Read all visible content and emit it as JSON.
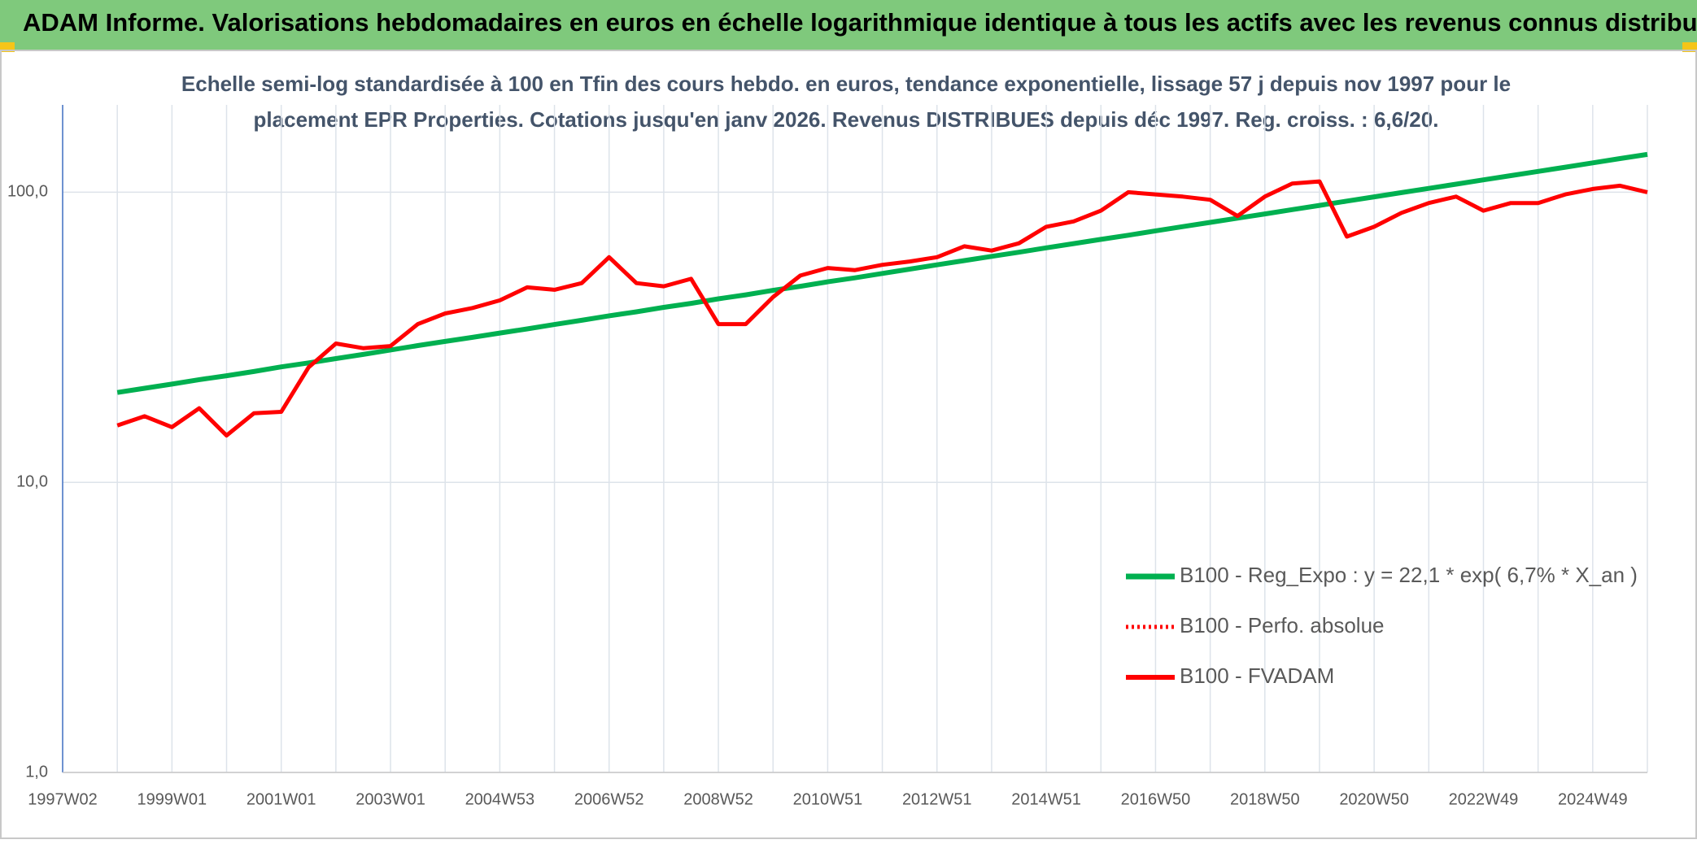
{
  "header": {
    "title": "ADAM Informe. Valorisations hebdomadaires en euros en échelle logarithmique identique à tous les actifs avec les revenus connus distribués"
  },
  "chart_data": {
    "type": "line",
    "subtitle": [
      "Echelle semi-log standardisée à 100 en Tfin des cours hebdo. en euros, tendance exponentielle, lissage 57 j depuis nov 1997 pour le",
      "placement EPR Properties. Cotations jusqu'en janv 2026. Revenus DISTRIBUES depuis déc 1997. Reg. croiss. : 6,6/20."
    ],
    "categories": [
      "1997W02",
      null,
      null,
      null,
      "1999W01",
      null,
      null,
      null,
      "2001W01",
      null,
      null,
      null,
      "2003W01",
      null,
      null,
      null,
      "2004W53",
      null,
      null,
      null,
      "2006W52",
      null,
      null,
      null,
      "2008W52",
      null,
      null,
      null,
      "2010W51",
      null,
      null,
      null,
      "2012W51",
      null,
      null,
      null,
      "2014W51",
      null,
      null,
      null,
      "2016W50",
      null,
      null,
      null,
      "2018W50",
      null,
      null,
      null,
      "2020W50",
      null,
      null,
      null,
      "2022W49",
      null,
      null,
      null,
      "2024W49",
      null,
      null
    ],
    "series": [
      {
        "name": "B100 - Reg_Expo : y = 22,1 * exp( 6,7% *  X_an )",
        "color": "#00b050",
        "style": "solid",
        "width": 6,
        "values": [
          null,
          null,
          20.4,
          21.1,
          21.8,
          22.6,
          23.3,
          24.1,
          25.0,
          25.8,
          26.7,
          27.6,
          28.6,
          29.6,
          30.6,
          31.6,
          32.7,
          33.8,
          35.0,
          36.2,
          37.5,
          38.7,
          40.1,
          41.4,
          42.9,
          44.3,
          45.9,
          47.4,
          49.1,
          50.7,
          52.5,
          54.3,
          56.2,
          58.1,
          60.1,
          62.1,
          64.3,
          66.5,
          68.8,
          71.1,
          73.6,
          76.1,
          78.7,
          81.4,
          84.2,
          87.1,
          90.1,
          93.2,
          96.4,
          99.7,
          103.1,
          106.6,
          110.3,
          114.1,
          118.0,
          122.0,
          126.2,
          130.6,
          135.0
        ]
      },
      {
        "name": "B100 - Perfo. absolue",
        "color": "#ff0000",
        "style": "dotted",
        "width": 4,
        "values": [
          null,
          null,
          null,
          null,
          null,
          null,
          null,
          null,
          null,
          null,
          null,
          null,
          null,
          null,
          null,
          null,
          null,
          null,
          null,
          null,
          null,
          null,
          null,
          null,
          null,
          null,
          null,
          null,
          null,
          null,
          null,
          null,
          null,
          null,
          null,
          null,
          null,
          null,
          null,
          null,
          null,
          null,
          null,
          null,
          null,
          null,
          null,
          null,
          null,
          null,
          null,
          null,
          null,
          null,
          null,
          null,
          null,
          null,
          null
        ]
      },
      {
        "name": "B100 - FVADAM",
        "color": "#ff0000",
        "style": "solid",
        "width": 5,
        "values": [
          null,
          null,
          15.7,
          16.9,
          15.5,
          18.0,
          14.5,
          17.3,
          17.5,
          24.9,
          30.1,
          29.0,
          29.5,
          35.1,
          38.2,
          39.9,
          42.4,
          47.0,
          46.1,
          48.6,
          59.7,
          48.6,
          47.4,
          50.3,
          35.1,
          35.1,
          43.5,
          51.6,
          54.8,
          53.9,
          56.2,
          57.7,
          59.7,
          65.1,
          62.9,
          66.7,
          76.0,
          79.3,
          86.4,
          100,
          98.3,
          96.6,
          94.2,
          82.8,
          96.6,
          107.1,
          109.0,
          70.3,
          76.0,
          84.9,
          91.8,
          96.6,
          86.4,
          91.8,
          91.8,
          98.3,
          102.6,
          105.3,
          100
        ]
      }
    ],
    "log_scale": true,
    "ylim": [
      1,
      200
    ],
    "yticks": [
      {
        "value": 1,
        "label": "1,0"
      },
      {
        "value": 10,
        "label": "10,0"
      },
      {
        "value": 100,
        "label": "100,0"
      }
    ],
    "grid": true,
    "legend": "right"
  }
}
